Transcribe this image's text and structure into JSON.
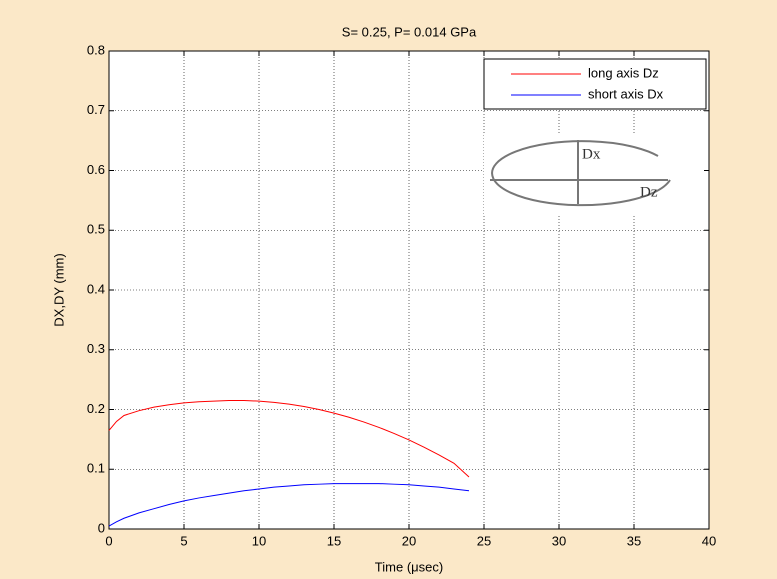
{
  "chart_data": {
    "type": "line",
    "title": "S= 0.25,  P= 0.014 GPa",
    "xlabel": "Time (μsec)",
    "ylabel": "DX,DY (mm)",
    "x": [
      0,
      0.5,
      1,
      2,
      3,
      4,
      5,
      6,
      7,
      8,
      9,
      10,
      11,
      12,
      13,
      14,
      15,
      16,
      17,
      18,
      19,
      20,
      21,
      22,
      23,
      24
    ],
    "series": [
      {
        "name": "long axis Dz",
        "color": "#ff0000",
        "values": [
          0.165,
          0.18,
          0.19,
          0.198,
          0.204,
          0.208,
          0.211,
          0.213,
          0.214,
          0.215,
          0.215,
          0.214,
          0.212,
          0.209,
          0.205,
          0.2,
          0.194,
          0.187,
          0.179,
          0.17,
          0.16,
          0.149,
          0.137,
          0.124,
          0.11,
          0.087
        ]
      },
      {
        "name": "short axis Dx",
        "color": "#0000ff",
        "values": [
          0.005,
          0.012,
          0.018,
          0.027,
          0.034,
          0.041,
          0.047,
          0.052,
          0.056,
          0.06,
          0.064,
          0.067,
          0.07,
          0.072,
          0.074,
          0.075,
          0.076,
          0.076,
          0.076,
          0.076,
          0.075,
          0.074,
          0.072,
          0.07,
          0.067,
          0.064
        ]
      }
    ],
    "xlim": [
      0,
      40
    ],
    "xticks": [
      0,
      5,
      10,
      15,
      20,
      25,
      30,
      35,
      40
    ],
    "ylim": [
      0,
      0.8
    ],
    "yticks": [
      0,
      0.1,
      0.2,
      0.3,
      0.4,
      0.5,
      0.6,
      0.7,
      0.8
    ],
    "grid": true,
    "legend": "upper-right",
    "annotations": [
      "Dx",
      "Dz"
    ]
  }
}
